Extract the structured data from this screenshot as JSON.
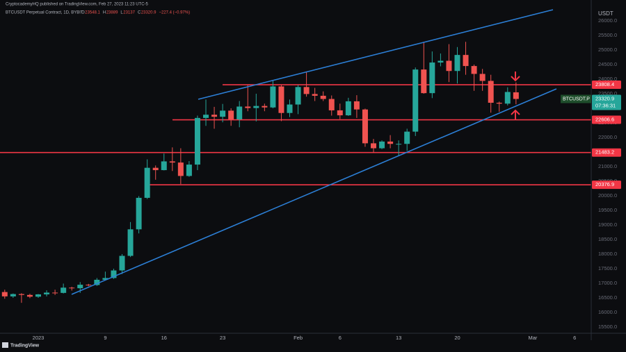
{
  "header": {
    "publisher": "CryptocademyHQ published on TradingView.com, Feb 27, 2023 11:23 UTC-5"
  },
  "chart_data": {
    "type": "candlestick",
    "title": "BTCUSDT Perpetual Contract, 1D, BYBIT",
    "ohlc_legend": {
      "o_label": "O",
      "open": 23548.1,
      "h_label": "H",
      "high": 23889.0,
      "l_label": "L",
      "low": 23137.0,
      "c_label": "C",
      "close": 23320.9,
      "change": "−227.4 (−0.97%)"
    },
    "currency": "USDT",
    "symbol": "BTCUSDT.P",
    "countdown": "07:36:31",
    "up_color": "#26a69a",
    "down_color": "#ef5350",
    "level_color": "#f23645",
    "trend_color": "#2c7fd6",
    "categories": [
      null,
      null,
      null,
      null,
      "2023",
      null,
      null,
      null,
      null,
      null,
      null,
      null,
      "9",
      null,
      null,
      null,
      null,
      null,
      null,
      "16",
      null,
      null,
      null,
      null,
      null,
      null,
      "23",
      null,
      null,
      null,
      null,
      null,
      null,
      null,
      null,
      "Feb",
      null,
      null,
      null,
      null,
      "6",
      null,
      null,
      null,
      null,
      null,
      null,
      "13",
      null,
      null,
      null,
      null,
      null,
      null,
      "20",
      null,
      null,
      null,
      null,
      null,
      null,
      null,
      null,
      "Mar",
      null,
      null,
      null,
      null,
      "6"
    ],
    "open": [
      16700,
      16550,
      16630,
      16600,
      16540,
      16620,
      16680,
      16670,
      16850,
      16830,
      16950,
      16940,
      17120,
      17180,
      17440,
      17940,
      18850,
      19930,
      20960,
      20880,
      21180,
      21140,
      20680,
      21070,
      22670,
      22780,
      22710,
      22920,
      22620,
      23060,
      23010,
      23080,
      23030,
      23750,
      22840,
      23130,
      23730,
      23490,
      23430,
      23320,
      22930,
      22760,
      23240,
      22960,
      21800,
      21630,
      21860,
      21780,
      21780,
      22200,
      24330,
      23520,
      24570,
      24630,
      24280,
      24830,
      24450,
      24180,
      23940,
      23190,
      23160,
      23548.1,
      null,
      null,
      null,
      null,
      null,
      null,
      null
    ],
    "high": [
      16780,
      16650,
      16660,
      16640,
      16630,
      16760,
      16780,
      16990,
      16880,
      17040,
      16980,
      17180,
      17400,
      17500,
      18000,
      19100,
      19990,
      21250,
      21040,
      21450,
      21660,
      21630,
      21190,
      22750,
      23300,
      23050,
      23150,
      23000,
      23250,
      23800,
      23500,
      23160,
      23950,
      23800,
      23300,
      23800,
      24250,
      23700,
      23580,
      23440,
      23160,
      23360,
      23450,
      22990,
      21950,
      21900,
      22080,
      21900,
      22300,
      24400,
      25250,
      24950,
      24880,
      25200,
      25100,
      25280,
      24500,
      24350,
      24150,
      23230,
      23720,
      23889.0,
      null,
      null,
      null,
      null,
      null,
      null,
      null
    ],
    "low": [
      16470,
      16500,
      16330,
      16490,
      16500,
      16550,
      16600,
      16650,
      16750,
      16670,
      16900,
      16910,
      17100,
      17150,
      17320,
      17900,
      18710,
      19890,
      20550,
      20870,
      20850,
      20400,
      20650,
      20880,
      22400,
      22300,
      22520,
      22400,
      22350,
      22900,
      22550,
      22900,
      23000,
      22560,
      22700,
      22800,
      23400,
      23250,
      23250,
      22750,
      22630,
      22740,
      22670,
      21680,
      21480,
      21600,
      21630,
      21370,
      21540,
      22050,
      23500,
      23350,
      24440,
      23900,
      23850,
      24150,
      23600,
      23600,
      22850,
      22880,
      23100,
      23137.0,
      null,
      null,
      null,
      null,
      null,
      null,
      null
    ],
    "close": [
      16550,
      16630,
      16600,
      16540,
      16620,
      16680,
      16670,
      16850,
      16830,
      16950,
      16940,
      17120,
      17180,
      17440,
      17940,
      18850,
      19930,
      20960,
      20880,
      21180,
      21140,
      20680,
      21070,
      22670,
      22780,
      22710,
      22920,
      22620,
      23060,
      23010,
      23080,
      23030,
      23750,
      22840,
      23130,
      23730,
      23490,
      23430,
      23320,
      22930,
      22760,
      23240,
      22960,
      21800,
      21630,
      21860,
      21780,
      21780,
      22200,
      24330,
      23520,
      24570,
      24630,
      24280,
      24830,
      24450,
      24180,
      23940,
      23190,
      23160,
      23560,
      23320.9,
      null,
      null,
      null,
      null,
      null,
      null,
      null
    ],
    "levels": [
      23808.4,
      22606.6,
      21483.2,
      20376.9
    ],
    "ylim": [
      15286,
      26714
    ],
    "yticks": [
      {
        "value": 15500,
        "label": "15500.0"
      },
      {
        "value": 16000,
        "label": "16000.0"
      },
      {
        "value": 16500,
        "label": "16500.0"
      },
      {
        "value": 17000,
        "label": "17000.0"
      },
      {
        "value": 17500,
        "label": "17500.0"
      },
      {
        "value": 18000,
        "label": "18000.0"
      },
      {
        "value": 18500,
        "label": "18500.0"
      },
      {
        "value": 19000,
        "label": "19000.0"
      },
      {
        "value": 19500,
        "label": "19500.0"
      },
      {
        "value": 20000,
        "label": "20000.0"
      },
      {
        "value": 20500,
        "label": "20500.0"
      },
      {
        "value": 21000,
        "label": "21000.0"
      },
      {
        "value": 21500,
        "label": "21500.0"
      },
      {
        "value": 22000,
        "label": "22000.0"
      },
      {
        "value": 22500,
        "label": "22500.0"
      },
      {
        "value": 23000,
        "label": "23000.0"
      },
      {
        "value": 23500,
        "label": "23500.0"
      },
      {
        "value": 24000,
        "label": "24000.0"
      },
      {
        "value": 24500,
        "label": "24500.0"
      },
      {
        "value": 25000,
        "label": "25000.0"
      },
      {
        "value": 25500,
        "label": "25500.0"
      },
      {
        "value": 26000,
        "label": "26000.0"
      }
    ],
    "grid": true
  },
  "footer": {
    "brand": "TradingView"
  }
}
